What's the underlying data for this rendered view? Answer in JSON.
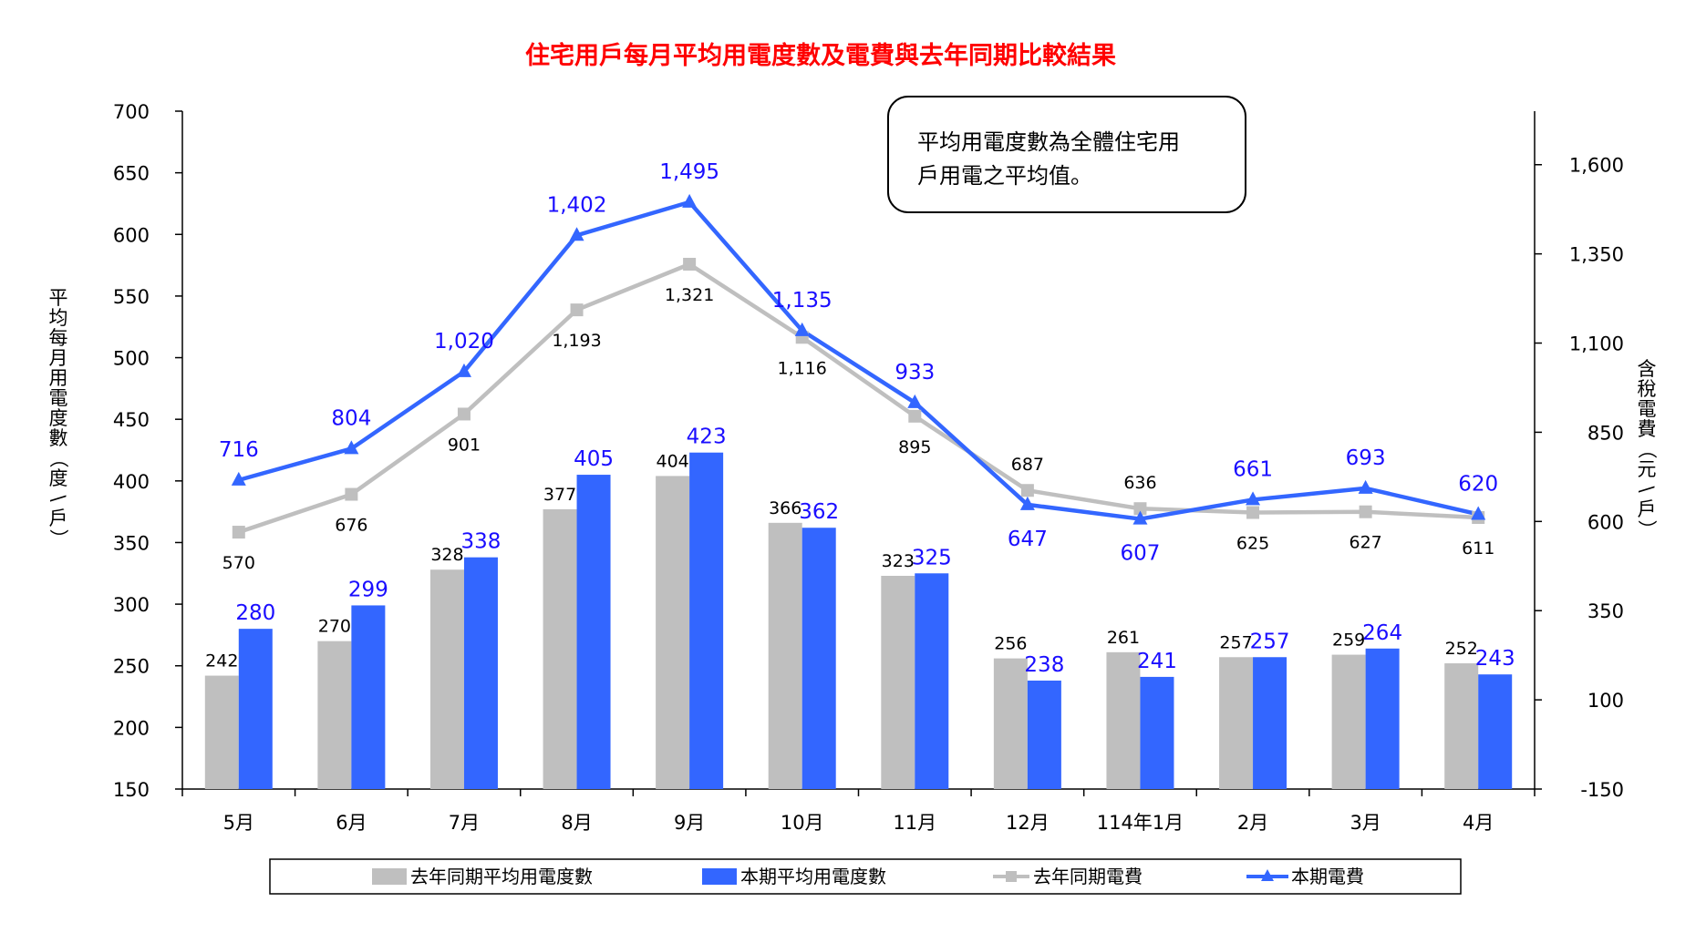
{
  "chart_data": {
    "type": "bar",
    "title": "住宅用戶每月平均用電度數及電費與去年同期比較結果",
    "ylabel": "平均每月用電度數（度\\戶）",
    "y2label": "含稅電費（元\\戶）",
    "ylim": [
      150,
      700
    ],
    "y_ticks": [
      "700",
      "650",
      "600",
      "550",
      "500",
      "450",
      "400",
      "350",
      "300",
      "250",
      "200",
      "150"
    ],
    "y2lim": [
      -150,
      1750
    ],
    "y2_ticks": [
      "1,600",
      "1,350",
      "1,100",
      "850",
      "600",
      "350",
      "100",
      "-150"
    ],
    "categories": [
      "5月",
      "6月",
      "7月",
      "8月",
      "9月",
      "10月",
      "11月",
      "12月",
      "114年1月",
      "2月",
      "3月",
      "4月"
    ],
    "series": [
      {
        "name": "去年同期平均用電度數",
        "kind": "bar",
        "axis": "left",
        "color": "#bfbfbf",
        "values": [
          242,
          270,
          328,
          377,
          404,
          366,
          323,
          256,
          261,
          257,
          259,
          252
        ]
      },
      {
        "name": "本期平均用電度數",
        "kind": "bar",
        "axis": "left",
        "color": "#3366ff",
        "values": [
          280,
          299,
          338,
          405,
          423,
          362,
          325,
          238,
          241,
          257,
          264,
          243
        ]
      },
      {
        "name": "去年同期電費",
        "kind": "line",
        "axis": "right",
        "color": "#bfbfbf",
        "marker": "square",
        "values": [
          570,
          676,
          901,
          1193,
          1321,
          1116,
          895,
          687,
          636,
          625,
          627,
          611
        ],
        "labels": [
          "570",
          "676",
          "901",
          "1,193",
          "1,321",
          "1,116",
          "895",
          "687",
          "636",
          "625",
          "627",
          "611"
        ]
      },
      {
        "name": "本期電費",
        "kind": "line",
        "axis": "right",
        "color": "#3366ff",
        "marker": "triangle",
        "values": [
          716,
          804,
          1020,
          1402,
          1495,
          1135,
          933,
          647,
          607,
          661,
          693,
          620
        ],
        "labels": [
          "716",
          "804",
          "1,020",
          "1,402",
          "1,495",
          "1,135",
          "933",
          "647",
          "607",
          "661",
          "693",
          "620"
        ]
      }
    ],
    "annotation": [
      "平均用電度數為全體住宅用",
      "戶用電之平均值。"
    ],
    "legend_placement": "bottom",
    "grid": false
  },
  "colors": {
    "title": "#ff0000",
    "prev": "#bfbfbf",
    "curr": "#3366ff",
    "curr_label": "#1a0dff"
  }
}
